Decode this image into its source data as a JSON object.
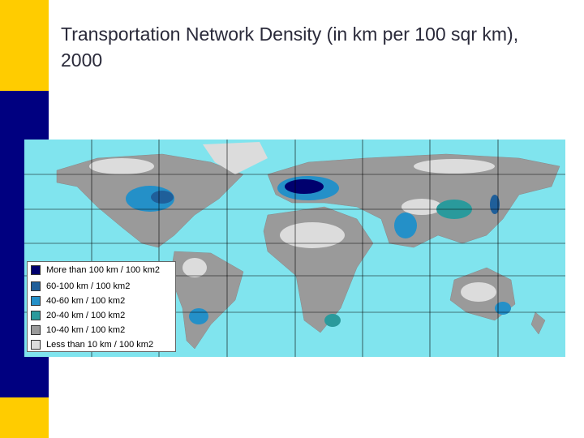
{
  "title": "Transportation Network Density (in km per 100 sqr km), 2000",
  "legend": {
    "items": [
      {
        "label": "More than 100 km / 100 km2",
        "color": "#00006e"
      },
      {
        "label": "60-100 km / 100 km2",
        "color": "#1f5f9a"
      },
      {
        "label": "40-60 km / 100 km2",
        "color": "#2490c8"
      },
      {
        "label": "20-40 km / 100 km2",
        "color": "#2a9a9c"
      },
      {
        "label": "10-40 km / 100 km2",
        "color": "#9a9a9a"
      },
      {
        "label": "Less than 10 km / 100 km2",
        "color": "#dcdcdc"
      }
    ]
  }
}
